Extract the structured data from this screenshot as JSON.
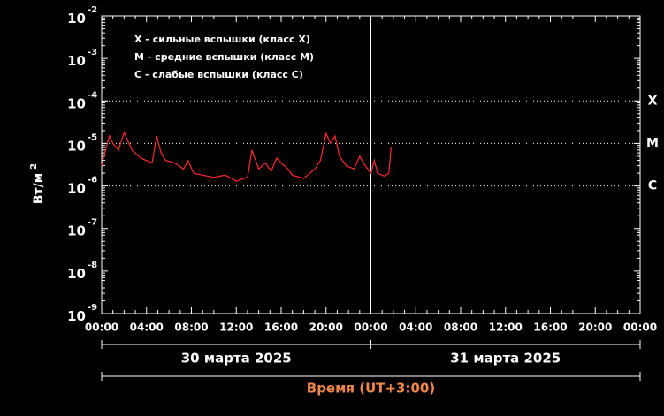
{
  "chart_data": {
    "type": "line",
    "log_scale": true,
    "ylabel": "Вт/м",
    "ylabel_exponent": "2",
    "xlabel": "Время (UT+3:00)",
    "xlabel_color": "#f0874a",
    "annotations": [
      "X - сильные вспышки (класс X)",
      "M - средние вспышки (класс M)",
      "C - слабые вспышки (класс C)"
    ],
    "levels": [
      {
        "value": 0.0001,
        "label": "X"
      },
      {
        "value": 1e-05,
        "label": "M"
      },
      {
        "value": 1e-06,
        "label": "C"
      }
    ],
    "date_labels": [
      {
        "value": 12,
        "label": "30 марта 2025"
      },
      {
        "value": 36,
        "label": "31 марта 2025"
      }
    ],
    "day_separator": 24,
    "xlim": [
      0,
      48
    ],
    "xticks": [
      {
        "value": 0,
        "label": "00:00"
      },
      {
        "value": 4,
        "label": "04:00"
      },
      {
        "value": 8,
        "label": "08:00"
      },
      {
        "value": 12,
        "label": "12:00"
      },
      {
        "value": 16,
        "label": "16:00"
      },
      {
        "value": 20,
        "label": "20:00"
      },
      {
        "value": 24,
        "label": "00:00"
      },
      {
        "value": 28,
        "label": "04:00"
      },
      {
        "value": 32,
        "label": "08:00"
      },
      {
        "value": 36,
        "label": "12:00"
      },
      {
        "value": 40,
        "label": "16:00"
      },
      {
        "value": 44,
        "label": "20:00"
      },
      {
        "value": 48,
        "label": "00:00"
      }
    ],
    "ylim": [
      1e-09,
      0.01
    ],
    "yticks": [
      {
        "value": 0.01,
        "label": "10",
        "exponent": "-2"
      },
      {
        "value": 0.001,
        "label": "10",
        "exponent": "-3"
      },
      {
        "value": 0.0001,
        "label": "10",
        "exponent": "-4"
      },
      {
        "value": 1e-05,
        "label": "10",
        "exponent": "-5"
      },
      {
        "value": 1e-06,
        "label": "10",
        "exponent": "-6"
      },
      {
        "value": 1e-07,
        "label": "10",
        "exponent": "-7"
      },
      {
        "value": 1e-08,
        "label": "10",
        "exponent": "-8"
      },
      {
        "value": 1e-09,
        "label": "10",
        "exponent": "-9"
      }
    ],
    "series": [
      {
        "color": "#ff2a2a",
        "x": [
          0,
          0.5,
          0.7,
          1.0,
          1.5,
          2.0,
          2.3,
          2.7,
          3.5,
          4.5,
          4.9,
          5.3,
          5.7,
          6.5,
          7.3,
          7.7,
          8.2,
          9,
          10,
          11,
          11.6,
          12,
          13,
          13.4,
          14,
          14.6,
          15.1,
          15.6,
          16,
          16.6,
          17,
          18,
          19,
          19.5,
          20,
          20.4,
          20.8,
          21.2,
          21.8,
          22.5,
          23,
          23.5,
          24,
          24.3,
          24.6,
          25.2,
          25.6,
          25.8
        ],
        "values": [
          3e-06,
          1e-05,
          1.5e-05,
          1e-05,
          7e-06,
          1.8e-05,
          1.2e-05,
          7e-06,
          4.5e-06,
          3.5e-06,
          1.5e-05,
          6e-06,
          4e-06,
          3.5e-06,
          2.5e-06,
          4e-06,
          2e-06,
          1.8e-06,
          1.6e-06,
          1.8e-06,
          1.5e-06,
          1.3e-06,
          1.6e-06,
          7e-06,
          2.5e-06,
          3.5e-06,
          2.2e-06,
          4.5e-06,
          3.5e-06,
          2.5e-06,
          1.8e-06,
          1.5e-06,
          2.5e-06,
          4e-06,
          1.7e-05,
          1e-05,
          1.5e-05,
          5e-06,
          3e-06,
          2.5e-06,
          5e-06,
          3e-06,
          2e-06,
          4e-06,
          2e-06,
          1.7e-06,
          2e-06,
          8e-06
        ]
      }
    ]
  }
}
